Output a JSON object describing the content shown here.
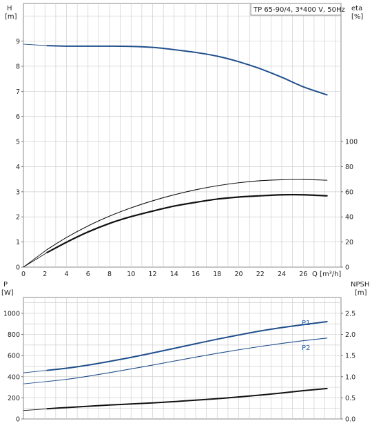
{
  "chart_data": [
    {
      "type": "line",
      "title": "TP 65-90/4, 3*400 V, 50Hz",
      "xlabel": "Q [m³/h]",
      "ylabel_unit": "H",
      "ylabel_unit2": "[m]",
      "y2label": "eta",
      "y2label_unit": "[%]",
      "xlim": [
        0,
        29.5
      ],
      "ylim": [
        0,
        10.5
      ],
      "y2lim": [
        0,
        210
      ],
      "grid": true,
      "x_ticks": [
        "0",
        "2",
        "4",
        "6",
        "8",
        "10",
        "12",
        "14",
        "16",
        "18",
        "20",
        "22",
        "24",
        "26"
      ],
      "y_ticks": [
        "0",
        "1",
        "2",
        "3",
        "4",
        "5",
        "6",
        "7",
        "8",
        "9"
      ],
      "y2_ticks": [
        "0",
        "20",
        "40",
        "60",
        "80",
        "100"
      ],
      "series": [
        {
          "id": "head",
          "axis": "left",
          "color": "#1f4e8c",
          "width": 2,
          "dashed_start": true,
          "x": [
            0,
            2.2,
            4,
            6,
            8,
            10,
            12,
            14,
            16,
            18,
            20,
            22,
            24,
            26,
            28.2
          ],
          "y": [
            8.88,
            8.82,
            8.8,
            8.8,
            8.8,
            8.79,
            8.75,
            8.66,
            8.55,
            8.4,
            8.18,
            7.9,
            7.56,
            7.18,
            6.86
          ]
        },
        {
          "id": "eta",
          "axis": "right",
          "color": "#111111",
          "width": 2.2,
          "dashed_start": true,
          "x": [
            0,
            2.2,
            4,
            6,
            8,
            10,
            12,
            14,
            16,
            18,
            20,
            22,
            24,
            26,
            28.2
          ],
          "y": [
            0,
            11.6,
            19.8,
            28,
            34.8,
            40.2,
            44.6,
            48.6,
            51.6,
            54.2,
            55.8,
            56.8,
            57.6,
            57.6,
            56.8
          ]
        },
        {
          "id": "eta-thin",
          "axis": "right",
          "color": "#111111",
          "width": 1.1,
          "dashed_start": true,
          "x": [
            0,
            2.2,
            4,
            6,
            8,
            10,
            12,
            14,
            16,
            18,
            20,
            22,
            24,
            26,
            28.2
          ],
          "y": [
            0,
            14,
            23.6,
            32.8,
            40.6,
            47.2,
            52.8,
            57.6,
            61.6,
            64.8,
            67.2,
            68.8,
            69.6,
            69.8,
            69.2
          ]
        }
      ]
    },
    {
      "type": "line",
      "ylabel_unit": "P",
      "ylabel_unit2": "[W]",
      "y2label": "NPSH",
      "y2label_unit": "[m]",
      "xlim": [
        0,
        29.5
      ],
      "ylim": [
        0,
        1150
      ],
      "y2lim": [
        0,
        2.875
      ],
      "grid": true,
      "y_ticks": [
        "0",
        "200",
        "400",
        "600",
        "800",
        "1000"
      ],
      "y2_ticks": [
        "0.0",
        "0.5",
        "1.0",
        "1.5",
        "2.0",
        "2.5"
      ],
      "series": [
        {
          "id": "P1",
          "name": "P1",
          "axis": "left",
          "color": "#1f4e8c",
          "width": 2,
          "dashed_start": true,
          "x": [
            0,
            2.2,
            4,
            6,
            8,
            10,
            12,
            14,
            16,
            18,
            20,
            22,
            24,
            26,
            28.2
          ],
          "y": [
            437,
            460,
            480,
            510,
            545,
            583,
            625,
            668,
            712,
            755,
            795,
            833,
            865,
            893,
            921
          ]
        },
        {
          "id": "P2",
          "name": "P2",
          "axis": "left",
          "color": "#1f4e8c",
          "width": 1.1,
          "dashed_start": true,
          "x": [
            0,
            2.2,
            4,
            6,
            8,
            10,
            12,
            14,
            16,
            18,
            20,
            22,
            24,
            26,
            28.2
          ],
          "y": [
            332,
            355,
            375,
            405,
            438,
            474,
            510,
            548,
            585,
            621,
            655,
            686,
            715,
            741,
            766
          ]
        },
        {
          "id": "NPSH",
          "axis": "right",
          "color": "#111111",
          "width": 2,
          "dashed_start": true,
          "x": [
            0,
            2.2,
            4,
            6,
            8,
            10,
            12,
            14,
            16,
            18,
            20,
            22,
            24,
            26,
            28.2
          ],
          "y": [
            0.2,
            0.24,
            0.27,
            0.3,
            0.33,
            0.355,
            0.38,
            0.41,
            0.445,
            0.48,
            0.52,
            0.565,
            0.615,
            0.67,
            0.72
          ]
        }
      ]
    }
  ]
}
